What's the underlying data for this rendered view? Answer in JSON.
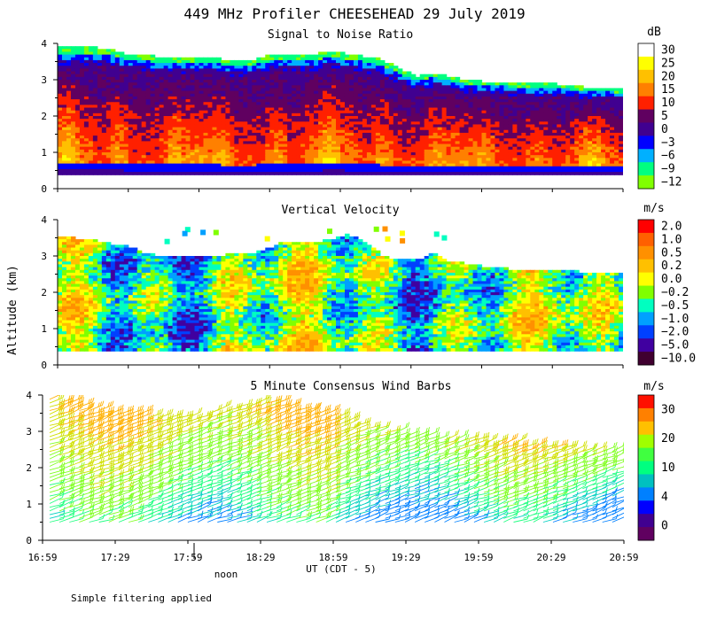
{
  "title": "449 MHz Profiler CHEESEHEAD 29 July 2019",
  "ylabel": "Altitude (km)",
  "xlabel": "UT  (CDT - 5)",
  "noon_label": "noon",
  "footnote": "Simple filtering applied",
  "x_ticks": [
    "16:59",
    "17:29",
    "17:59",
    "18:29",
    "18:59",
    "19:29",
    "19:59",
    "20:29",
    "20:59"
  ],
  "y_ticks": [
    "0",
    "1",
    "2",
    "3",
    "4"
  ],
  "chart_data": [
    {
      "type": "heatmap",
      "title": "Signal to Noise Ratio",
      "xlabel": "UT  (CDT - 5)",
      "ylabel": "Altitude (km)",
      "ylim": [
        0,
        4
      ],
      "x_range": [
        "16:59",
        "20:59"
      ],
      "colorbar": {
        "unit": "dB",
        "labels": [
          "30",
          "25",
          "20",
          "15",
          "10",
          "5",
          "0",
          "−3",
          "−6",
          "−9",
          "−12"
        ],
        "colors": [
          "#ffffff",
          "#ffff00",
          "#ffc000",
          "#ff8000",
          "#ff2000",
          "#600060",
          "#400090",
          "#0000ff",
          "#00b0ff",
          "#00ff80",
          "#80ff00"
        ]
      },
      "top_altitude_km": [
        3.9,
        3.9,
        3.9,
        3.85,
        3.7,
        3.7,
        3.6,
        3.6,
        3.6,
        3.6,
        3.55,
        3.5,
        3.65,
        3.7,
        3.7,
        3.7,
        3.8,
        3.7,
        3.65,
        3.55,
        3.3,
        3.1,
        3.2,
        3.1,
        3.0,
        2.95,
        2.95,
        2.9,
        2.9,
        2.9,
        2.85,
        2.8,
        2.8,
        2.75
      ],
      "signal_bottom_km": 0.4
    },
    {
      "type": "heatmap",
      "title": "Vertical Velocity",
      "xlabel": "UT  (CDT - 5)",
      "ylabel": "Altitude (km)",
      "ylim": [
        0,
        4
      ],
      "x_range": [
        "16:59",
        "20:59"
      ],
      "colorbar": {
        "unit": "m/s",
        "labels": [
          "2.0",
          "1.0",
          "0.5",
          "0.2",
          "0.0",
          "−0.2",
          "−0.5",
          "−1.0",
          "−2.0",
          "−5.0",
          "−10.0"
        ],
        "colors": [
          "#ff0000",
          "#ff6000",
          "#ff9000",
          "#ffc000",
          "#ffff00",
          "#80ff00",
          "#00ffc0",
          "#00a0ff",
          "#0040ff",
          "#4000a0",
          "#400030"
        ]
      },
      "top_altitude_km": [
        3.5,
        3.5,
        3.45,
        3.35,
        3.3,
        3.1,
        3.0,
        3.0,
        3.0,
        3.0,
        3.05,
        3.05,
        3.15,
        3.35,
        3.35,
        3.4,
        3.45,
        3.6,
        3.4,
        3.0,
        2.9,
        2.9,
        3.1,
        2.85,
        2.8,
        2.7,
        2.7,
        2.6,
        2.6,
        2.6,
        2.6,
        2.55,
        2.55,
        2.55
      ],
      "signal_bottom_km": 0.4
    },
    {
      "type": "scatter",
      "subtype": "wind barbs",
      "title": "5 Minute Consensus Wind Barbs",
      "xlabel": "UT  (CDT - 5)",
      "ylabel": "Altitude (km)",
      "ylim": [
        0,
        4
      ],
      "x_range": [
        "16:59",
        "20:59"
      ],
      "colorbar": {
        "unit": "m/s",
        "labels": [
          "30",
          "20",
          "10",
          "4",
          "0"
        ],
        "colors": [
          "#ff1000",
          "#ff8000",
          "#ffc000",
          "#a0ff00",
          "#40ff40",
          "#00ff80",
          "#00c0c0",
          "#0080ff",
          "#0000ff",
          "#400090",
          "#600060"
        ]
      },
      "top_altitude_km": [
        3.9,
        3.8,
        3.7,
        3.6,
        3.5,
        3.5,
        3.45,
        3.4,
        3.4,
        3.5,
        3.6,
        3.7,
        3.8,
        3.9,
        3.7,
        3.6,
        3.5,
        3.4,
        3.2,
        3.1,
        3.0,
        2.9,
        2.9,
        2.8,
        2.8,
        2.8,
        2.7,
        2.7,
        2.6,
        2.6,
        2.6,
        2.5,
        2.5,
        2.5
      ],
      "low_altitude_km": 0.5,
      "speed_profile": "strong (15-20 m/s) aloft 2-3.5 km early, weaker (5-10 m/s) near 0.6-1 km"
    }
  ]
}
